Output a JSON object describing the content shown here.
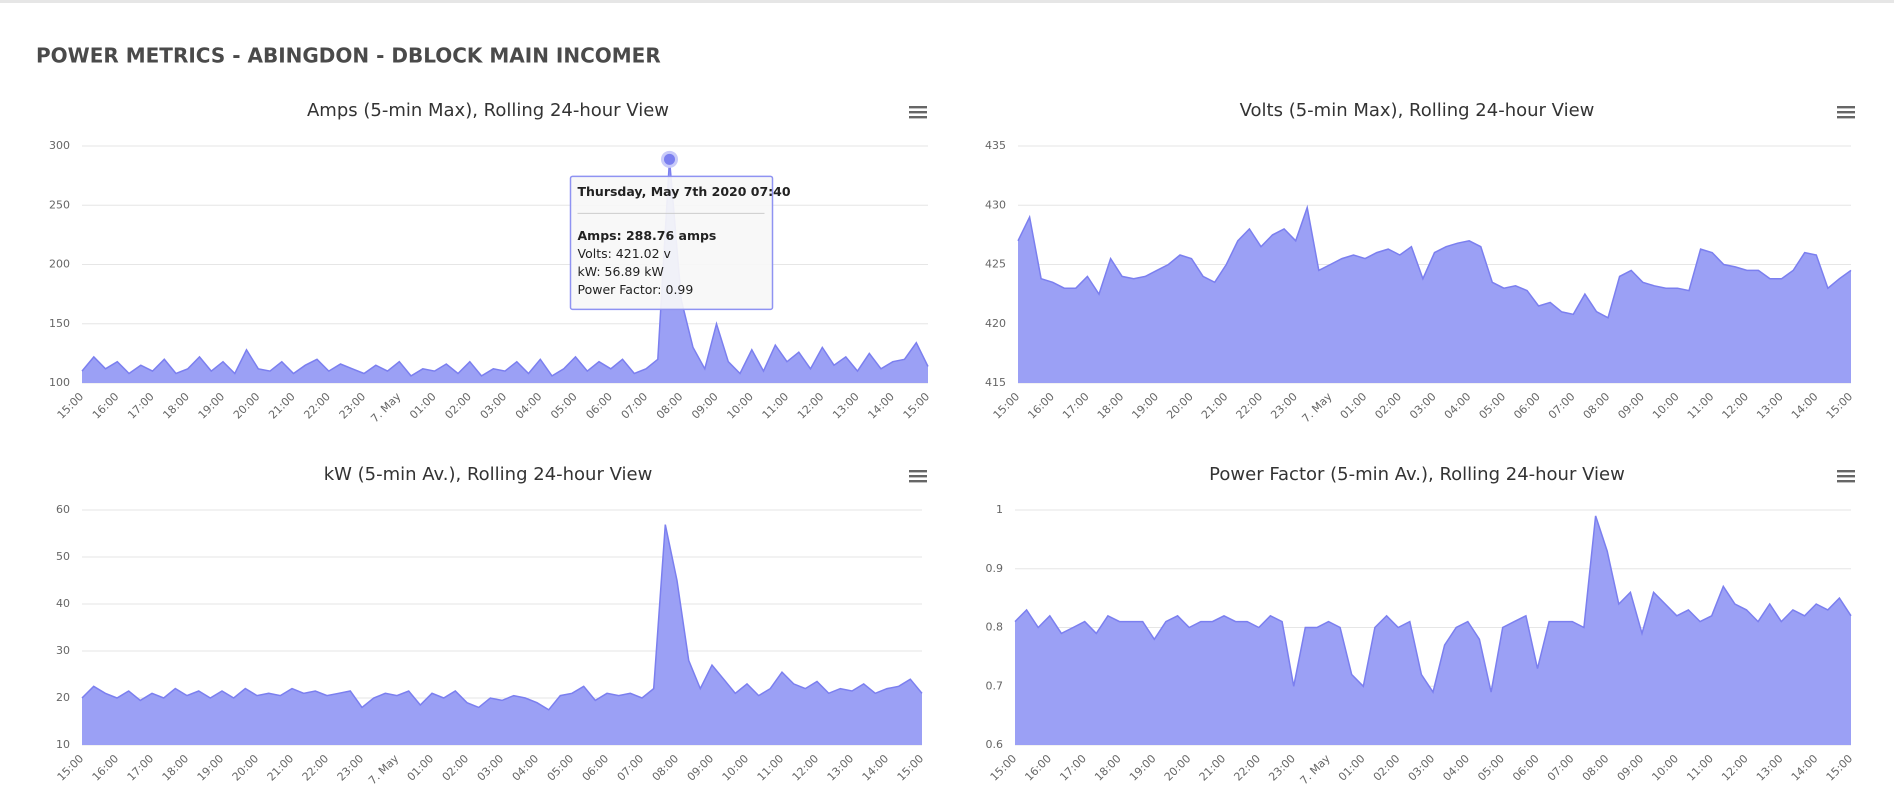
{
  "title": "POWER METRICS - ABINGDON - DBLOCK MAIN INCOMER",
  "chart_data": [
    {
      "type": "area",
      "title": "Amps (5-min Max), Rolling 24-hour View",
      "color": "#9ba0f5",
      "line_color": "#7b7fef",
      "categories": [
        "15:00",
        null,
        null,
        "16:00",
        null,
        null,
        "17:00",
        null,
        null,
        "18:00",
        null,
        null,
        "19:00",
        null,
        null,
        "20:00",
        null,
        null,
        "21:00",
        null,
        null,
        "22:00",
        null,
        null,
        "23:00",
        null,
        null,
        "7. May",
        null,
        null,
        "01:00",
        null,
        null,
        "02:00",
        null,
        null,
        "03:00",
        null,
        null,
        "04:00",
        null,
        null,
        "05:00",
        null,
        null,
        "06:00",
        null,
        null,
        "07:00",
        null,
        null,
        "08:00",
        null,
        null,
        "09:00",
        null,
        null,
        "10:00",
        null,
        null,
        "11:00",
        null,
        null,
        "12:00",
        null,
        null,
        "13:00",
        null,
        null,
        "14:00",
        null,
        null,
        "15:00"
      ],
      "values": [
        110,
        122,
        112,
        118,
        108,
        115,
        110,
        120,
        108,
        112,
        122,
        110,
        118,
        108,
        128,
        112,
        110,
        118,
        108,
        115,
        120,
        110,
        116,
        112,
        108,
        115,
        110,
        118,
        106,
        112,
        110,
        116,
        108,
        118,
        106,
        112,
        110,
        118,
        108,
        120,
        106,
        112,
        122,
        110,
        118,
        112,
        120,
        108,
        112,
        120,
        288.76,
        170,
        130,
        112,
        150,
        118,
        108,
        128,
        110,
        132,
        118,
        126,
        112,
        130,
        115,
        122,
        110,
        125,
        112,
        118,
        120,
        134,
        114
      ],
      "ylim": [
        100,
        300
      ],
      "yticks": [
        100,
        150,
        200,
        250,
        300
      ],
      "grid": true,
      "tooltip": {
        "title": "Thursday, May 7th 2020 07:40",
        "lines": [
          "Amps: 288.76 amps",
          "Volts: 421.02 v",
          "kW: 56.89 kW",
          "Power Factor: 0.99"
        ]
      }
    },
    {
      "type": "area",
      "title": "Volts (5-min Max), Rolling 24-hour View",
      "color": "#9ba0f5",
      "line_color": "#7b7fef",
      "categories": [
        "15:00",
        null,
        null,
        "16:00",
        null,
        null,
        "17:00",
        null,
        null,
        "18:00",
        null,
        null,
        "19:00",
        null,
        null,
        "20:00",
        null,
        null,
        "21:00",
        null,
        null,
        "22:00",
        null,
        null,
        "23:00",
        null,
        null,
        "7. May",
        null,
        null,
        "01:00",
        null,
        null,
        "02:00",
        null,
        null,
        "03:00",
        null,
        null,
        "04:00",
        null,
        null,
        "05:00",
        null,
        null,
        "06:00",
        null,
        null,
        "07:00",
        null,
        null,
        "08:00",
        null,
        null,
        "09:00",
        null,
        null,
        "10:00",
        null,
        null,
        "11:00",
        null,
        null,
        "12:00",
        null,
        null,
        "13:00",
        null,
        null,
        "14:00",
        null,
        null,
        "15:00"
      ],
      "values": [
        427,
        429,
        423.8,
        423.5,
        423,
        423,
        424,
        422.5,
        425.5,
        424,
        423.8,
        424,
        424.5,
        425,
        425.8,
        425.5,
        424,
        423.5,
        425,
        427,
        428,
        426.5,
        427.5,
        428,
        427,
        429.8,
        424.5,
        425,
        425.5,
        425.8,
        425.5,
        426,
        426.3,
        425.8,
        426.5,
        423.8,
        426,
        426.5,
        426.8,
        427,
        426.5,
        423.5,
        423,
        423.2,
        422.8,
        421.5,
        421.8,
        421,
        420.8,
        422.5,
        421.02,
        420.5,
        424,
        424.5,
        423.5,
        423.2,
        423,
        423,
        422.8,
        426.3,
        426,
        425,
        424.8,
        424.5,
        424.5,
        423.8,
        423.8,
        424.5,
        426,
        425.8,
        423,
        423.8,
        424.5
      ],
      "ylim": [
        415,
        435
      ],
      "yticks": [
        415,
        420,
        425,
        430,
        435
      ],
      "grid": true
    },
    {
      "type": "area",
      "title": "kW (5-min Av.), Rolling 24-hour View",
      "color": "#9ba0f5",
      "line_color": "#7b7fef",
      "categories": [
        "15:00",
        null,
        null,
        "16:00",
        null,
        null,
        "17:00",
        null,
        null,
        "18:00",
        null,
        null,
        "19:00",
        null,
        null,
        "20:00",
        null,
        null,
        "21:00",
        null,
        null,
        "22:00",
        null,
        null,
        "23:00",
        null,
        null,
        "7. May",
        null,
        null,
        "01:00",
        null,
        null,
        "02:00",
        null,
        null,
        "03:00",
        null,
        null,
        "04:00",
        null,
        null,
        "05:00",
        null,
        null,
        "06:00",
        null,
        null,
        "07:00",
        null,
        null,
        "08:00",
        null,
        null,
        "09:00",
        null,
        null,
        "10:00",
        null,
        null,
        "11:00",
        null,
        null,
        "12:00",
        null,
        null,
        "13:00",
        null,
        null,
        "14:00",
        null,
        null,
        "15:00"
      ],
      "values": [
        20,
        22.5,
        21,
        20,
        21.5,
        19.5,
        21,
        20,
        22,
        20.5,
        21.5,
        20,
        21.5,
        20,
        22,
        20.5,
        21,
        20.5,
        22,
        21,
        21.5,
        20.5,
        21,
        21.5,
        18,
        20,
        21,
        20.5,
        21.5,
        18.5,
        21,
        20,
        21.5,
        19,
        18,
        20,
        19.5,
        20.5,
        20,
        19,
        17.5,
        20.5,
        21,
        22.5,
        19.5,
        21,
        20.5,
        21,
        20,
        22,
        56.89,
        45,
        28,
        22,
        27,
        24,
        21,
        23,
        20.5,
        22,
        25.5,
        23,
        22,
        23.5,
        21,
        22,
        21.5,
        23,
        21,
        22,
        22.5,
        24,
        21
      ],
      "ylim": [
        10,
        60
      ],
      "yticks": [
        10,
        20,
        30,
        40,
        50,
        60
      ],
      "grid": true
    },
    {
      "type": "area",
      "title": "Power Factor (5-min Av.), Rolling 24-hour View",
      "color": "#9ba0f5",
      "line_color": "#7b7fef",
      "categories": [
        "15:00",
        null,
        null,
        "16:00",
        null,
        null,
        "17:00",
        null,
        null,
        "18:00",
        null,
        null,
        "19:00",
        null,
        null,
        "20:00",
        null,
        null,
        "21:00",
        null,
        null,
        "22:00",
        null,
        null,
        "23:00",
        null,
        null,
        "7. May",
        null,
        null,
        "01:00",
        null,
        null,
        "02:00",
        null,
        null,
        "03:00",
        null,
        null,
        "04:00",
        null,
        null,
        "05:00",
        null,
        null,
        "06:00",
        null,
        null,
        "07:00",
        null,
        null,
        "08:00",
        null,
        null,
        "09:00",
        null,
        null,
        "10:00",
        null,
        null,
        "11:00",
        null,
        null,
        "12:00",
        null,
        null,
        "13:00",
        null,
        null,
        "14:00",
        null,
        null,
        "15:00"
      ],
      "values": [
        0.81,
        0.83,
        0.8,
        0.82,
        0.79,
        0.8,
        0.81,
        0.79,
        0.82,
        0.81,
        0.81,
        0.81,
        0.78,
        0.81,
        0.82,
        0.8,
        0.81,
        0.81,
        0.82,
        0.81,
        0.81,
        0.8,
        0.82,
        0.81,
        0.7,
        0.8,
        0.8,
        0.81,
        0.8,
        0.72,
        0.7,
        0.8,
        0.82,
        0.8,
        0.81,
        0.72,
        0.69,
        0.77,
        0.8,
        0.81,
        0.78,
        0.69,
        0.8,
        0.81,
        0.82,
        0.73,
        0.81,
        0.81,
        0.81,
        0.8,
        0.99,
        0.93,
        0.84,
        0.86,
        0.79,
        0.86,
        0.84,
        0.82,
        0.83,
        0.81,
        0.82,
        0.87,
        0.84,
        0.83,
        0.81,
        0.84,
        0.81,
        0.83,
        0.82,
        0.84,
        0.83,
        0.85,
        0.82
      ],
      "ylim": [
        0.6,
        1
      ],
      "yticks": [
        0.6,
        0.7,
        0.8,
        0.9,
        1
      ],
      "grid": true
    }
  ]
}
